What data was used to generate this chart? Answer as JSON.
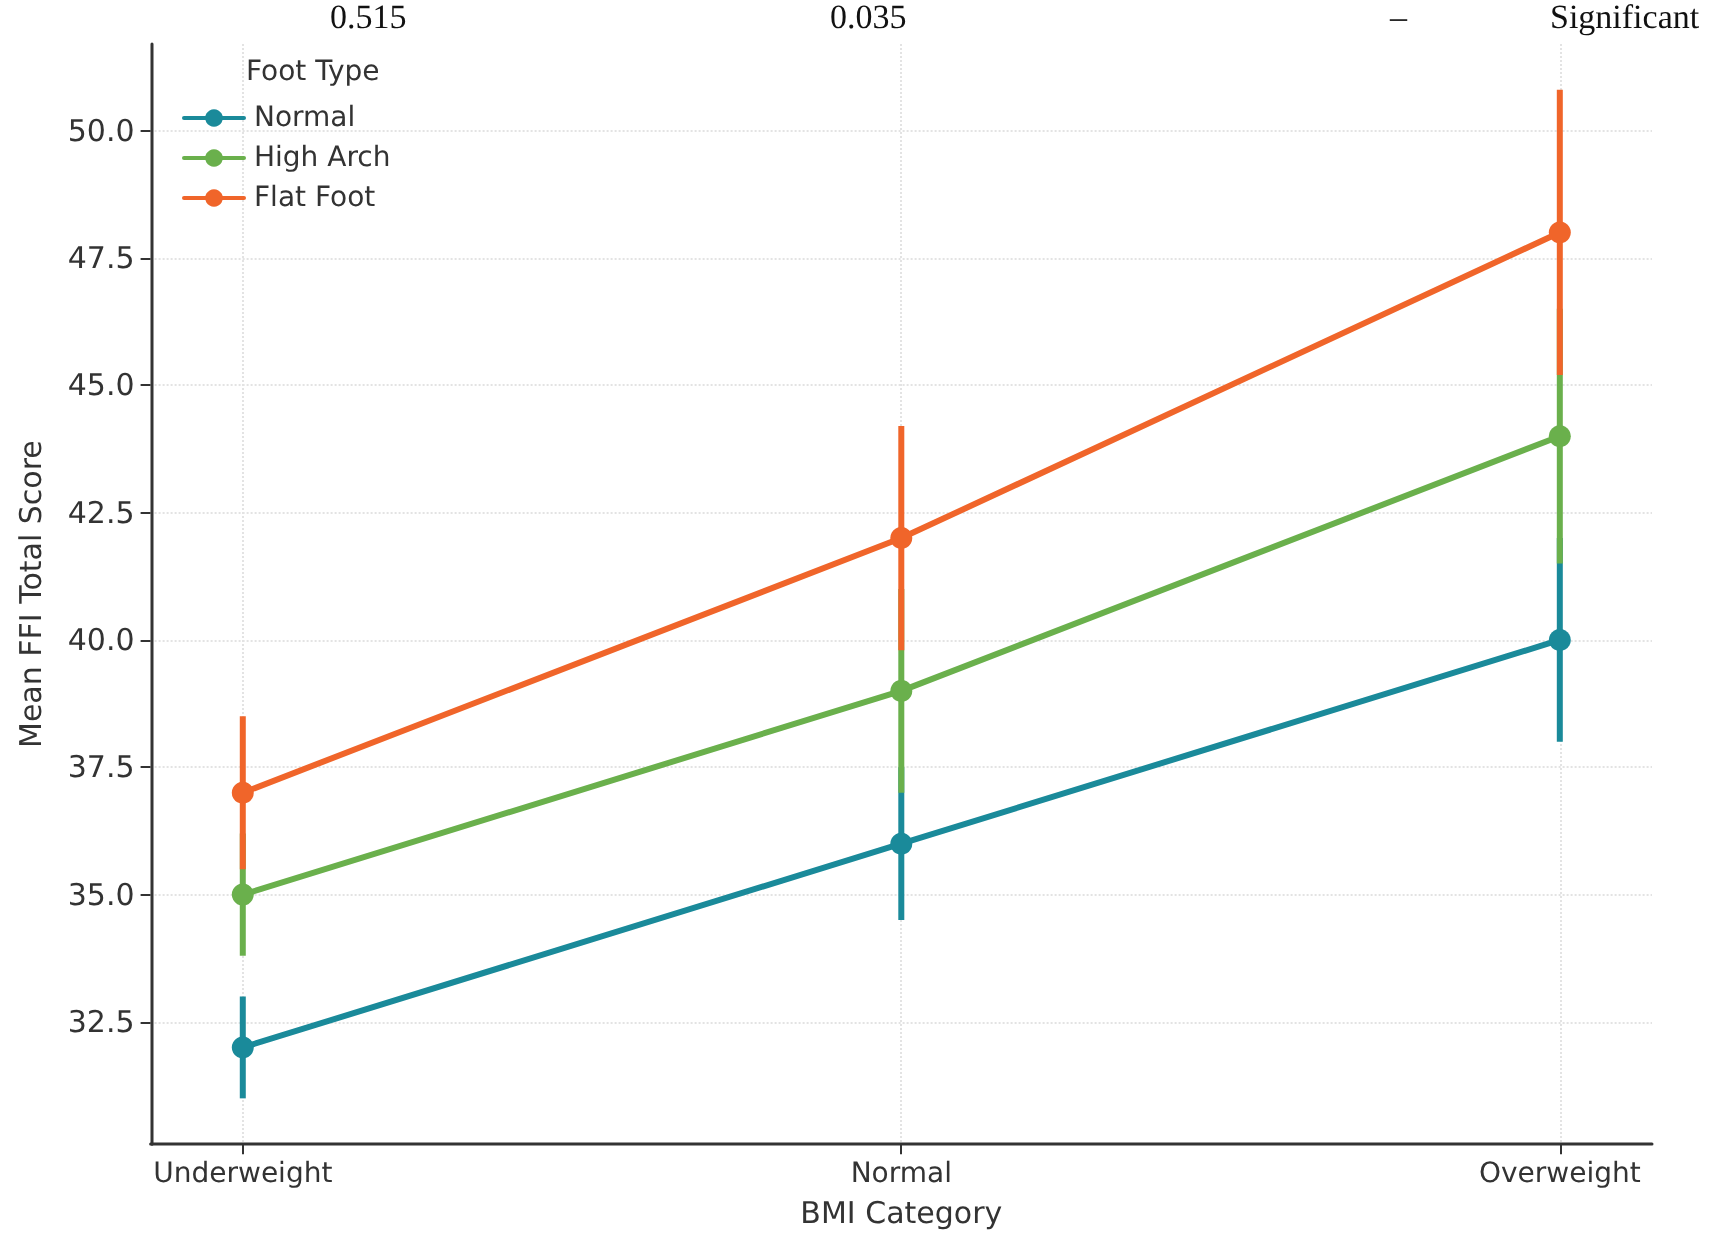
{
  "chart_data": {
    "type": "line",
    "xlabel": "BMI Category",
    "ylabel": "Mean FFI Total Score",
    "legend_title": "Foot Type",
    "categories": [
      "Underweight",
      "Normal",
      "Overweight"
    ],
    "series": [
      {
        "name": "Normal",
        "color": "#1a8a9a",
        "values": [
          32,
          36,
          40
        ],
        "errors": [
          1,
          1.5,
          2
        ]
      },
      {
        "name": "High Arch",
        "color": "#6ab04c",
        "values": [
          35,
          39,
          44
        ],
        "errors": [
          1.2,
          2,
          2.5
        ]
      },
      {
        "name": "Flat Foot",
        "color": "#f0652a",
        "values": [
          37,
          42,
          48
        ],
        "errors": [
          1.5,
          2.2,
          2.8
        ]
      }
    ],
    "ylim": [
      30.1,
      51.7
    ],
    "yticks": [
      {
        "value": 32.5,
        "label": "32.5"
      },
      {
        "value": 35,
        "label": "35.0"
      },
      {
        "value": 37.5,
        "label": "37.5"
      },
      {
        "value": 40,
        "label": "40.0"
      },
      {
        "value": 42.5,
        "label": "42.5"
      },
      {
        "value": 45,
        "label": "45.0"
      },
      {
        "value": 47.5,
        "label": "47.5"
      },
      {
        "value": 50,
        "label": "50.0"
      }
    ],
    "grid": true,
    "legend": "top left",
    "marker": "circle",
    "line_style": "solid",
    "annotations": [
      "0.515",
      "0.035",
      "–",
      "Significant"
    ]
  }
}
